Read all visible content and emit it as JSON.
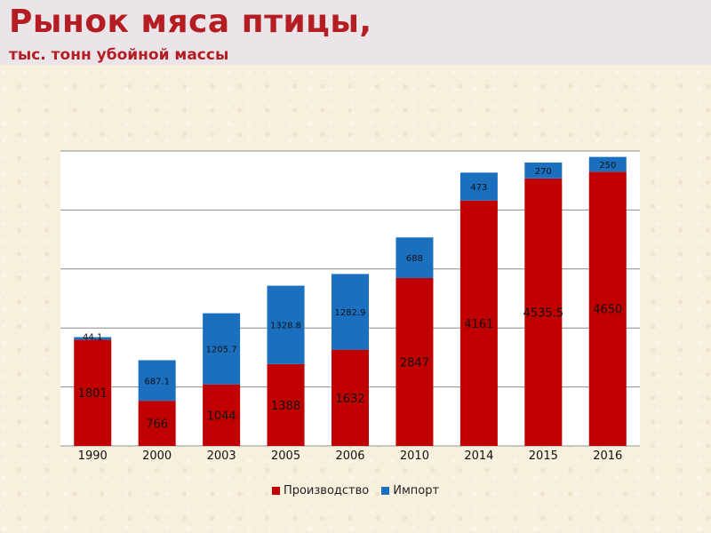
{
  "header": {
    "title": "Рынок мяса птицы,",
    "subtitle": "тыс. тонн убойной массы"
  },
  "colors": {
    "production": "#c00000",
    "import": "#1b6fbf",
    "header_bg": "#ebe5ea",
    "title": "#b41e23"
  },
  "chart_data": {
    "type": "bar",
    "stacked": true,
    "categories": [
      "1990",
      "2000",
      "2003",
      "2005",
      "2006",
      "2010",
      "2014",
      "2015",
      "2016"
    ],
    "series": [
      {
        "name": "Производство",
        "color": "#c00000",
        "values": [
          1801,
          766,
          1044,
          1388,
          1632,
          2847,
          4161,
          4535.5,
          4650
        ],
        "labels": [
          "1801",
          "766",
          "1044",
          "1388",
          "1632",
          "2847",
          "4161",
          "4535.5",
          "4650"
        ]
      },
      {
        "name": "Импорт",
        "color": "#1b6fbf",
        "values": [
          44.1,
          687.1,
          1205.7,
          1328.8,
          1282.9,
          688,
          473,
          270,
          250
        ],
        "labels": [
          "44.1",
          "687.1",
          "1205.7",
          "1328.8",
          "1282.9",
          "688",
          "473",
          "270",
          "250"
        ]
      }
    ],
    "ylim": [
      0,
      5000
    ],
    "grid": true,
    "legend": "bottom"
  }
}
